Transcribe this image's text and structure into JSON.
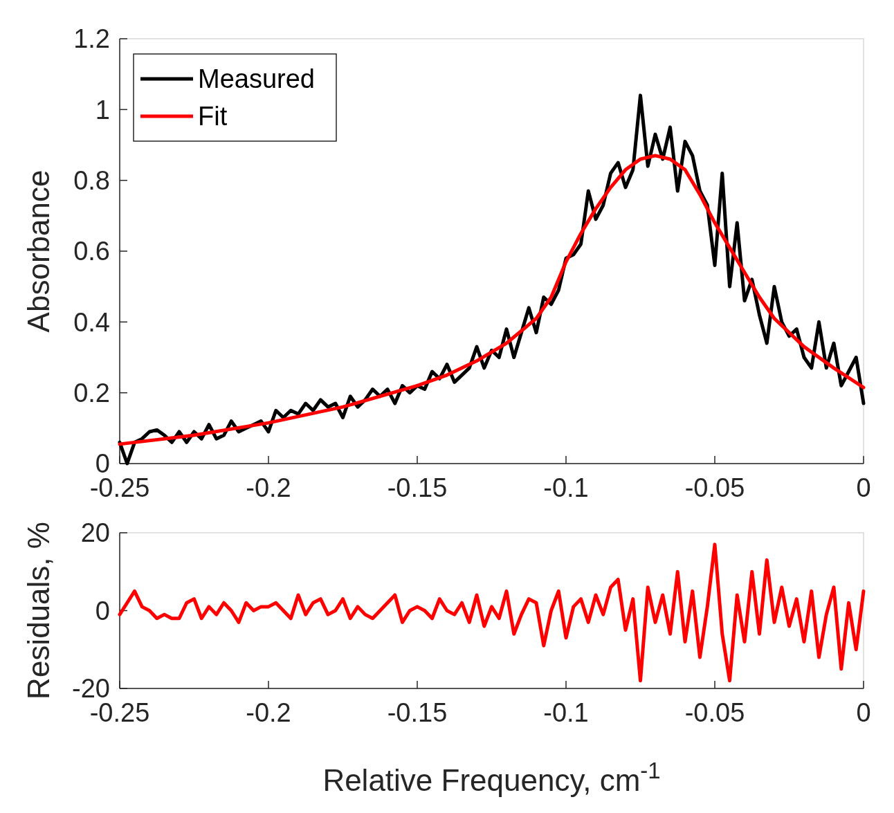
{
  "chart_data": [
    {
      "type": "line",
      "ylabel": "Absorbance",
      "legend": "top left",
      "xlim": [
        -0.25,
        0
      ],
      "xticks": [
        -0.25,
        -0.2,
        -0.15,
        -0.1,
        -0.05,
        0
      ],
      "ylim": [
        0,
        1.2
      ],
      "yticks": [
        0,
        0.2,
        0.4,
        0.6,
        0.8,
        1,
        1.2
      ],
      "x": [
        -0.25,
        -0.2475,
        -0.245,
        -0.2425,
        -0.24,
        -0.2375,
        -0.235,
        -0.2325,
        -0.23,
        -0.2275,
        -0.225,
        -0.2225,
        -0.22,
        -0.2175,
        -0.215,
        -0.2125,
        -0.21,
        -0.2075,
        -0.205,
        -0.2025,
        -0.2,
        -0.1975,
        -0.195,
        -0.1925,
        -0.19,
        -0.1875,
        -0.185,
        -0.1825,
        -0.18,
        -0.1775,
        -0.175,
        -0.1725,
        -0.17,
        -0.1675,
        -0.165,
        -0.1625,
        -0.16,
        -0.1575,
        -0.155,
        -0.1525,
        -0.15,
        -0.1475,
        -0.145,
        -0.1425,
        -0.14,
        -0.1375,
        -0.135,
        -0.1325,
        -0.13,
        -0.1275,
        -0.125,
        -0.1225,
        -0.12,
        -0.1175,
        -0.115,
        -0.1125,
        -0.11,
        -0.1075,
        -0.105,
        -0.1025,
        -0.1,
        -0.0975,
        -0.095,
        -0.0925,
        -0.09,
        -0.0875,
        -0.085,
        -0.0825,
        -0.08,
        -0.0775,
        -0.075,
        -0.0725,
        -0.07,
        -0.0675,
        -0.065,
        -0.0625,
        -0.06,
        -0.0575,
        -0.055,
        -0.0525,
        -0.05,
        -0.0475,
        -0.045,
        -0.0425,
        -0.04,
        -0.0375,
        -0.035,
        -0.0325,
        -0.03,
        -0.0275,
        -0.025,
        -0.0225,
        -0.02,
        -0.0175,
        -0.015,
        -0.0125,
        -0.01,
        -0.0075,
        -0.005,
        -0.0025,
        0
      ],
      "series": [
        {
          "name": "Measured",
          "color": "#000000",
          "values": [
            0.06,
            0.0,
            0.06,
            0.07,
            0.09,
            0.095,
            0.08,
            0.06,
            0.09,
            0.06,
            0.09,
            0.07,
            0.11,
            0.07,
            0.08,
            0.12,
            0.09,
            0.1,
            0.11,
            0.12,
            0.09,
            0.15,
            0.13,
            0.15,
            0.14,
            0.17,
            0.15,
            0.18,
            0.16,
            0.17,
            0.13,
            0.19,
            0.16,
            0.18,
            0.21,
            0.19,
            0.21,
            0.17,
            0.22,
            0.2,
            0.22,
            0.21,
            0.26,
            0.24,
            0.28,
            0.23,
            0.25,
            0.27,
            0.33,
            0.27,
            0.32,
            0.3,
            0.38,
            0.3,
            0.37,
            0.44,
            0.37,
            0.47,
            0.45,
            0.49,
            0.58,
            0.59,
            0.62,
            0.77,
            0.69,
            0.73,
            0.82,
            0.85,
            0.78,
            0.83,
            1.04,
            0.84,
            0.93,
            0.86,
            0.95,
            0.77,
            0.91,
            0.87,
            0.77,
            0.73,
            0.56,
            0.82,
            0.5,
            0.68,
            0.46,
            0.52,
            0.42,
            0.34,
            0.5,
            0.4,
            0.36,
            0.38,
            0.3,
            0.27,
            0.4,
            0.27,
            0.34,
            0.22,
            0.26,
            0.3,
            0.17
          ]
        },
        {
          "name": "Fit",
          "color": "#ff0000",
          "x": [
            -0.25,
            -0.225,
            -0.2,
            -0.175,
            -0.15,
            -0.14,
            -0.13,
            -0.12,
            -0.11,
            -0.105,
            -0.1,
            -0.095,
            -0.09,
            -0.085,
            -0.08,
            -0.075,
            -0.07,
            -0.065,
            -0.06,
            -0.055,
            -0.05,
            -0.045,
            -0.04,
            -0.035,
            -0.03,
            -0.02,
            -0.01,
            0
          ],
          "values": [
            0.055,
            0.08,
            0.115,
            0.16,
            0.22,
            0.25,
            0.29,
            0.34,
            0.41,
            0.47,
            0.57,
            0.65,
            0.72,
            0.78,
            0.83,
            0.86,
            0.87,
            0.86,
            0.83,
            0.76,
            0.68,
            0.61,
            0.54,
            0.47,
            0.41,
            0.33,
            0.27,
            0.215
          ]
        }
      ]
    },
    {
      "type": "line",
      "xlabel": "Relative Frequency, cm$^{-1}$",
      "ylabel": "Residuals, %",
      "xlim": [
        -0.25,
        0
      ],
      "xticks": [
        -0.25,
        -0.2,
        -0.15,
        -0.1,
        -0.05,
        0
      ],
      "ylim": [
        -20,
        20
      ],
      "yticks": [
        -20,
        0,
        20
      ],
      "x": [
        -0.25,
        -0.2475,
        -0.245,
        -0.2425,
        -0.24,
        -0.2375,
        -0.235,
        -0.2325,
        -0.23,
        -0.2275,
        -0.225,
        -0.2225,
        -0.22,
        -0.2175,
        -0.215,
        -0.2125,
        -0.21,
        -0.2075,
        -0.205,
        -0.2025,
        -0.2,
        -0.1975,
        -0.195,
        -0.1925,
        -0.19,
        -0.1875,
        -0.185,
        -0.1825,
        -0.18,
        -0.1775,
        -0.175,
        -0.1725,
        -0.17,
        -0.1675,
        -0.165,
        -0.1625,
        -0.16,
        -0.1575,
        -0.155,
        -0.1525,
        -0.15,
        -0.1475,
        -0.145,
        -0.1425,
        -0.14,
        -0.1375,
        -0.135,
        -0.1325,
        -0.13,
        -0.1275,
        -0.125,
        -0.1225,
        -0.12,
        -0.1175,
        -0.115,
        -0.1125,
        -0.11,
        -0.1075,
        -0.105,
        -0.1025,
        -0.1,
        -0.0975,
        -0.095,
        -0.0925,
        -0.09,
        -0.0875,
        -0.085,
        -0.0825,
        -0.08,
        -0.0775,
        -0.075,
        -0.0725,
        -0.07,
        -0.0675,
        -0.065,
        -0.0625,
        -0.06,
        -0.0575,
        -0.055,
        -0.0525,
        -0.05,
        -0.0475,
        -0.045,
        -0.0425,
        -0.04,
        -0.0375,
        -0.035,
        -0.0325,
        -0.03,
        -0.0275,
        -0.025,
        -0.0225,
        -0.02,
        -0.0175,
        -0.015,
        -0.0125,
        -0.01,
        -0.0075,
        -0.005,
        -0.0025,
        0
      ],
      "series": [
        {
          "color": "#ff0000",
          "values": [
            -1,
            2,
            5,
            1,
            0,
            -2,
            -1,
            -2,
            -2,
            2,
            3,
            -2,
            1,
            -1,
            2,
            0,
            -3,
            2,
            0,
            1,
            1,
            2,
            0,
            -2,
            4,
            -1,
            2,
            3,
            -1,
            0,
            3,
            -2,
            1,
            -1,
            -2,
            0,
            2,
            4,
            -3,
            0,
            1,
            0,
            -2,
            3,
            0,
            -1,
            2,
            -3,
            4,
            -4,
            1,
            -2,
            5,
            -6,
            -1,
            3,
            2,
            -9,
            0,
            5,
            -7,
            1,
            3,
            -3,
            4,
            -1,
            6,
            8,
            -5,
            3,
            -18,
            6,
            -3,
            4,
            -6,
            10,
            -8,
            5,
            -12,
            1,
            17,
            -6,
            -18,
            4,
            -8,
            10,
            -6,
            13,
            -3,
            6,
            -4,
            3,
            -8,
            5,
            -12,
            -1,
            6,
            -15,
            2,
            -10,
            5
          ]
        }
      ]
    }
  ]
}
